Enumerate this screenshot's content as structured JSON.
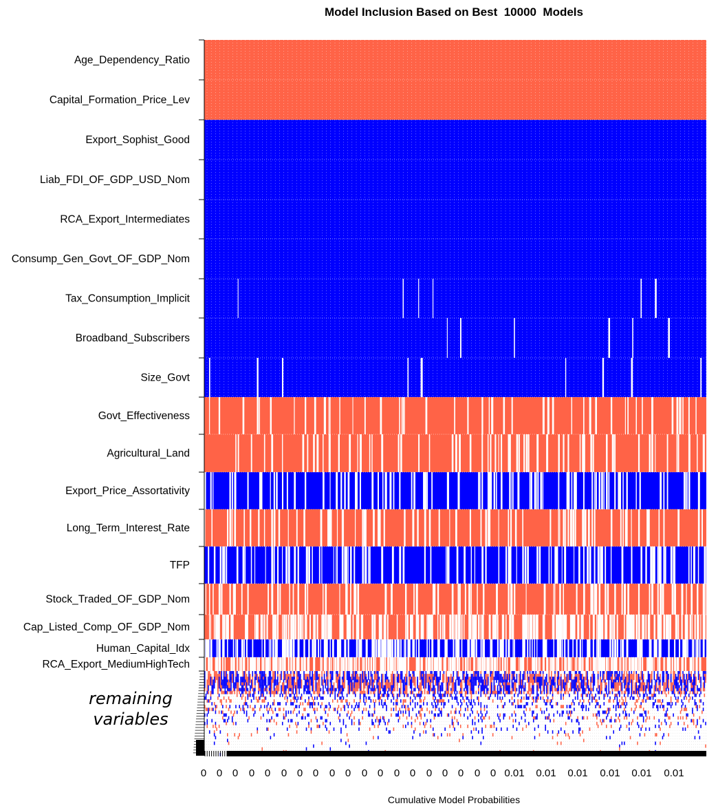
{
  "chart_data": {
    "type": "heatmap",
    "title": "Model Inclusion Based on Best  10000  Models",
    "xlabel": "Cumulative Model Probabilities",
    "ylabel": "",
    "annotation": "remaining variables",
    "x_tick_labels": [
      "0",
      "0",
      "0",
      "0",
      "0",
      "0",
      "0",
      "0",
      "0",
      "0",
      "0",
      "0",
      "0",
      "0",
      "0",
      "0",
      "0",
      "0",
      "0",
      "0.01",
      "0.01",
      "0.01",
      "0.01",
      "0.01",
      "0.01"
    ],
    "legend_colors": {
      "positive": "#ff6347",
      "negative": "#0000ff",
      "excluded": "#ffffff"
    },
    "variables": [
      {
        "name": "Age_Dependency_Ratio",
        "sign": "positive",
        "inclusion": 1.0
      },
      {
        "name": "Capital_Formation_Price_Lev",
        "sign": "positive",
        "inclusion": 1.0
      },
      {
        "name": "Export_Sophist_Good",
        "sign": "negative",
        "inclusion": 1.0
      },
      {
        "name": "Liab_FDI_OF_GDP_USD_Nom",
        "sign": "negative",
        "inclusion": 1.0
      },
      {
        "name": "RCA_Export_Intermediates",
        "sign": "negative",
        "inclusion": 1.0
      },
      {
        "name": "Consump_Gen_Govt_OF_GDP_Nom",
        "sign": "negative",
        "inclusion": 1.0
      },
      {
        "name": "Tax_Consumption_Implicit",
        "sign": "negative",
        "inclusion": 0.99
      },
      {
        "name": "Broadband_Subscribers",
        "sign": "negative",
        "inclusion": 0.99
      },
      {
        "name": "Size_Govt",
        "sign": "negative",
        "inclusion": 0.98
      },
      {
        "name": "Govt_Effectiveness",
        "sign": "positive",
        "inclusion": 0.88
      },
      {
        "name": "Agricultural_Land",
        "sign": "positive",
        "inclusion": 0.86
      },
      {
        "name": "Export_Price_Assortativity",
        "sign": "negative",
        "inclusion": 0.8
      },
      {
        "name": "Long_Term_Interest_Rate",
        "sign": "positive",
        "inclusion": 0.82
      },
      {
        "name": "TFP",
        "sign": "negative",
        "inclusion": 0.75
      },
      {
        "name": "Stock_Traded_OF_GDP_Nom",
        "sign": "positive",
        "inclusion": 0.8
      },
      {
        "name": "Cap_Listed_Comp_OF_GDP_Nom",
        "sign": "positive",
        "inclusion": 0.5
      },
      {
        "name": "Human_Capital_Idx",
        "sign": "negative",
        "inclusion": 0.55
      },
      {
        "name": "RCA_Export_MediumHighTech",
        "sign": "positive",
        "inclusion": 0.4
      }
    ]
  }
}
